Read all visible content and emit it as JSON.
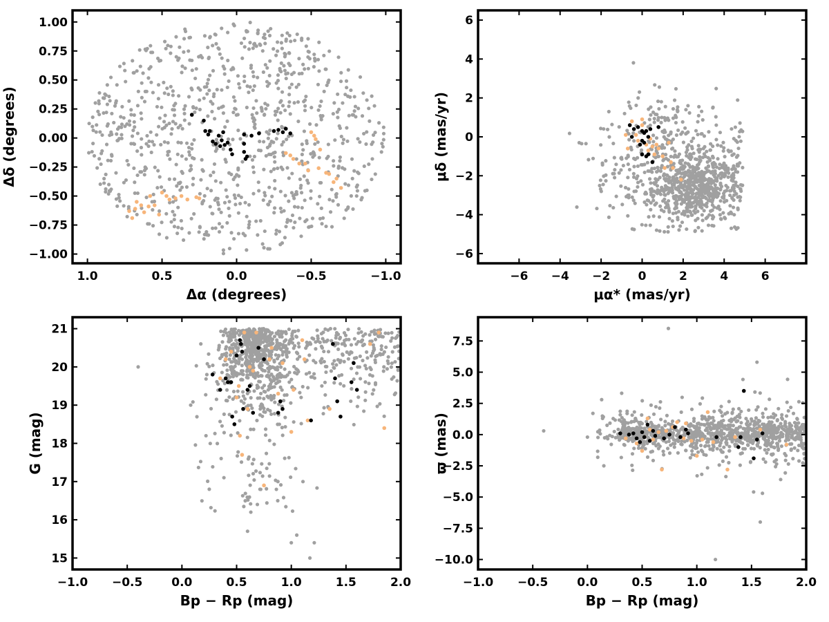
{
  "colors": {
    "field": "#a0a0a0",
    "members": "#000000",
    "highlight": "#f7b57a"
  },
  "chart_data": [
    {
      "type": "scatter",
      "xlabel": "Δα (degrees)",
      "ylabel": "Δδ (degrees)",
      "xlim": [
        1.1,
        -1.1
      ],
      "ylim": [
        -1.08,
        1.1
      ],
      "xticks": [
        1.0,
        0.5,
        0.0,
        -0.5,
        -1.0
      ],
      "xtick_labels": [
        "1.0",
        "0.5",
        "0.0",
        "−0.5",
        "−1.0"
      ],
      "yticks": [
        1.0,
        0.75,
        0.5,
        0.25,
        0.0,
        -0.25,
        -0.5,
        -0.75,
        -1.0
      ],
      "ytick_labels": [
        "1.00",
        "0.75",
        "0.50",
        "0.25",
        "0.00",
        "−0.25",
        "−0.50",
        "−0.75",
        "−1.00"
      ],
      "grid": false,
      "field_distribution": {
        "shape": "disk",
        "center": [
          0.0,
          0.0
        ],
        "radius": 1.0,
        "count": 900
      },
      "series": [
        {
          "color_key": "members",
          "points": [
            [
              0.3,
              0.2
            ],
            [
              0.22,
              0.15
            ],
            [
              0.21,
              0.06
            ],
            [
              0.19,
              0.03
            ],
            [
              0.18,
              0.06
            ],
            [
              0.16,
              -0.03
            ],
            [
              0.14,
              -0.05
            ],
            [
              0.12,
              0.02
            ],
            [
              0.11,
              -0.07
            ],
            [
              0.1,
              -0.02
            ],
            [
              0.09,
              0.05
            ],
            [
              0.08,
              -0.06
            ],
            [
              0.06,
              -0.04
            ],
            [
              0.04,
              -0.1
            ],
            [
              0.03,
              -0.14
            ],
            [
              -0.05,
              0.03
            ],
            [
              -0.05,
              -0.05
            ],
            [
              -0.05,
              -0.12
            ],
            [
              -0.06,
              -0.18
            ],
            [
              -0.07,
              -0.16
            ],
            [
              -0.1,
              0.02
            ],
            [
              -0.15,
              0.04
            ],
            [
              -0.25,
              0.06
            ],
            [
              -0.28,
              0.07
            ],
            [
              -0.31,
              0.05
            ],
            [
              -0.33,
              0.08
            ],
            [
              -0.36,
              0.04
            ]
          ]
        },
        {
          "color_key": "highlight",
          "points": [
            [
              0.72,
              -0.63
            ],
            [
              0.7,
              -0.69
            ],
            [
              0.68,
              -0.61
            ],
            [
              0.67,
              -0.55
            ],
            [
              0.64,
              -0.58
            ],
            [
              0.62,
              -0.64
            ],
            [
              0.59,
              -0.59
            ],
            [
              0.58,
              -0.5
            ],
            [
              0.55,
              -0.58
            ],
            [
              0.52,
              -0.66
            ],
            [
              0.5,
              -0.47
            ],
            [
              0.47,
              -0.5
            ],
            [
              0.45,
              -0.53
            ],
            [
              0.41,
              -0.52
            ],
            [
              0.37,
              -0.5
            ],
            [
              0.33,
              -0.53
            ],
            [
              0.27,
              -0.51
            ],
            [
              0.25,
              -0.52
            ],
            [
              -0.33,
              -0.13
            ],
            [
              -0.36,
              -0.15
            ],
            [
              -0.38,
              -0.18
            ],
            [
              -0.42,
              -0.22
            ],
            [
              -0.46,
              -0.22
            ],
            [
              -0.48,
              -0.28
            ],
            [
              -0.5,
              0.05
            ],
            [
              -0.52,
              0.02
            ],
            [
              -0.53,
              -0.01
            ],
            [
              -0.55,
              -0.26
            ],
            [
              -0.56,
              -0.1
            ],
            [
              -0.6,
              -0.3
            ],
            [
              -0.62,
              -0.31
            ],
            [
              -0.65,
              -0.38
            ],
            [
              -0.67,
              -0.35
            ],
            [
              -0.7,
              -0.43
            ]
          ]
        }
      ]
    },
    {
      "type": "scatter",
      "xlabel": "μα* (mas/yr)",
      "ylabel": "μδ (mas/yr)",
      "xlim": [
        -8.0,
        8.0
      ],
      "ylim": [
        -6.5,
        6.5
      ],
      "xticks": [
        -6,
        -4,
        -2,
        0,
        2,
        4,
        6
      ],
      "xtick_labels": [
        "−6",
        "−4",
        "−2",
        "0",
        "2",
        "4",
        "6"
      ],
      "yticks": [
        6,
        4,
        2,
        0,
        -2,
        -4,
        -6
      ],
      "ytick_labels": [
        "6",
        "4",
        "2",
        "0",
        "−2",
        "−4",
        "−6"
      ],
      "grid": false,
      "field_distribution": {
        "shape": "blob",
        "center": [
          1.5,
          -1.6
        ],
        "spread": [
          1.9,
          1.7
        ],
        "clump_center": [
          2.7,
          -2.7
        ],
        "count": 950
      },
      "series": [
        {
          "color_key": "members",
          "points": [
            [
              -0.6,
              0.6
            ],
            [
              -0.4,
              0.4
            ],
            [
              -0.5,
              0.0
            ],
            [
              -0.2,
              0.5
            ],
            [
              0.0,
              0.3
            ],
            [
              0.1,
              0.2
            ],
            [
              0.2,
              0.3
            ],
            [
              0.3,
              0.0
            ],
            [
              0.0,
              -0.2
            ],
            [
              0.1,
              -0.3
            ],
            [
              -0.1,
              -0.4
            ],
            [
              0.0,
              -0.9
            ],
            [
              0.2,
              -1.0
            ],
            [
              0.3,
              -0.9
            ],
            [
              0.5,
              -1.3
            ],
            [
              0.4,
              0.4
            ],
            [
              0.8,
              0.5
            ]
          ]
        },
        {
          "color_key": "highlight",
          "points": [
            [
              -0.8,
              0.1
            ],
            [
              -0.7,
              -0.6
            ],
            [
              -0.5,
              0.8
            ],
            [
              -0.3,
              0.1
            ],
            [
              -0.2,
              -0.2
            ],
            [
              0.0,
              0.6
            ],
            [
              0.0,
              0.9
            ],
            [
              0.2,
              -0.4
            ],
            [
              0.3,
              -0.7
            ],
            [
              0.4,
              -0.1
            ],
            [
              0.5,
              -0.5
            ],
            [
              0.6,
              -0.9
            ],
            [
              0.7,
              -0.4
            ],
            [
              0.8,
              -0.6
            ],
            [
              1.0,
              -1.0
            ],
            [
              1.1,
              -1.6
            ],
            [
              1.3,
              -0.3
            ],
            [
              1.4,
              -1.3
            ],
            [
              1.9,
              -2.2
            ],
            [
              1.5,
              -1.6
            ]
          ]
        }
      ]
    },
    {
      "type": "scatter",
      "xlabel": "Bp − Rp (mag)",
      "ylabel": "G (mag)",
      "xlim": [
        -1.0,
        2.0
      ],
      "ylim": [
        14.7,
        21.3
      ],
      "xticks": [
        -1.0,
        -0.5,
        0.0,
        0.5,
        1.0,
        1.5,
        2.0
      ],
      "xtick_labels": [
        "−1.0",
        "−0.5",
        "0.0",
        "0.5",
        "1.0",
        "1.5",
        "2.0"
      ],
      "yticks": [
        21,
        20,
        19,
        18,
        17,
        16,
        15
      ],
      "ytick_labels": [
        "21",
        "20",
        "19",
        "18",
        "17",
        "16",
        "15"
      ],
      "grid": false,
      "field_distribution": {
        "shape": "cmd",
        "count": 1000
      },
      "series": [
        {
          "color_key": "members",
          "points": [
            [
              0.28,
              19.8
            ],
            [
              0.35,
              19.4
            ],
            [
              0.4,
              19.7
            ],
            [
              0.42,
              19.6
            ],
            [
              0.45,
              19.6
            ],
            [
              0.46,
              18.7
            ],
            [
              0.48,
              18.5
            ],
            [
              0.5,
              20.3
            ],
            [
              0.53,
              20.7
            ],
            [
              0.54,
              20.6
            ],
            [
              0.55,
              20.4
            ],
            [
              0.56,
              18.9
            ],
            [
              0.6,
              19.4
            ],
            [
              0.62,
              19.5
            ],
            [
              0.65,
              18.8
            ],
            [
              0.7,
              20.5
            ],
            [
              0.75,
              20.2
            ],
            [
              0.88,
              18.8
            ],
            [
              0.9,
              19.1
            ],
            [
              0.92,
              18.9
            ],
            [
              1.18,
              18.6
            ],
            [
              1.38,
              20.6
            ],
            [
              1.4,
              19.7
            ],
            [
              1.42,
              19.1
            ],
            [
              1.45,
              18.7
            ],
            [
              1.55,
              19.6
            ],
            [
              1.57,
              20.1
            ],
            [
              1.6,
              19.4
            ]
          ]
        },
        {
          "color_key": "highlight",
          "points": [
            [
              0.35,
              19.7
            ],
            [
              0.4,
              20.2
            ],
            [
              0.45,
              20.4
            ],
            [
              0.5,
              19.2
            ],
            [
              0.52,
              19.5
            ],
            [
              0.53,
              18.2
            ],
            [
              0.55,
              17.7
            ],
            [
              0.57,
              20.9
            ],
            [
              0.6,
              18.9
            ],
            [
              0.62,
              20.0
            ],
            [
              0.65,
              19.9
            ],
            [
              0.68,
              20.9
            ],
            [
              0.75,
              16.9
            ],
            [
              0.8,
              20.2
            ],
            [
              0.82,
              20.5
            ],
            [
              0.88,
              19.3
            ],
            [
              0.92,
              20.1
            ],
            [
              1.0,
              18.3
            ],
            [
              1.02,
              19.4
            ],
            [
              1.1,
              20.7
            ],
            [
              1.12,
              20.2
            ],
            [
              1.15,
              18.6
            ],
            [
              1.35,
              18.9
            ],
            [
              1.72,
              20.6
            ],
            [
              1.8,
              20.9
            ],
            [
              1.85,
              18.4
            ]
          ]
        }
      ]
    },
    {
      "type": "scatter",
      "xlabel": "Bp − Rp (mag)",
      "ylabel": "ϖ (mas)",
      "xlim": [
        -1.0,
        2.0
      ],
      "ylim": [
        -10.8,
        9.4
      ],
      "xticks": [
        -1.0,
        -0.5,
        0.0,
        0.5,
        1.0,
        1.5,
        2.0
      ],
      "xtick_labels": [
        "−1.0",
        "−0.5",
        "0.0",
        "0.5",
        "1.0",
        "1.5",
        "2.0"
      ],
      "yticks": [
        7.5,
        5.0,
        2.5,
        0.0,
        -2.5,
        -5.0,
        -7.5,
        -10.0
      ],
      "ytick_labels": [
        "7.5",
        "5.0",
        "2.5",
        "0.0",
        "−2.5",
        "−5.0",
        "−7.5",
        "−10.0"
      ],
      "grid": false,
      "field_distribution": {
        "shape": "band",
        "count": 1000
      },
      "series": [
        {
          "color_key": "members",
          "points": [
            [
              0.3,
              0.1
            ],
            [
              0.38,
              0.0
            ],
            [
              0.42,
              0.1
            ],
            [
              0.45,
              -0.3
            ],
            [
              0.48,
              -0.6
            ],
            [
              0.5,
              0.2
            ],
            [
              0.52,
              -0.2
            ],
            [
              0.55,
              0.8
            ],
            [
              0.57,
              -0.5
            ],
            [
              0.6,
              0.3
            ],
            [
              0.62,
              -0.1
            ],
            [
              0.7,
              -0.3
            ],
            [
              0.75,
              0.0
            ],
            [
              0.8,
              0.6
            ],
            [
              0.85,
              -0.2
            ],
            [
              0.9,
              0.4
            ],
            [
              0.92,
              0.1
            ],
            [
              1.18,
              -0.2
            ],
            [
              1.38,
              -1.0
            ],
            [
              1.4,
              -0.2
            ],
            [
              1.43,
              3.5
            ],
            [
              1.52,
              -1.9
            ],
            [
              1.55,
              -0.4
            ],
            [
              1.6,
              0.1
            ]
          ]
        },
        {
          "color_key": "highlight",
          "points": [
            [
              0.35,
              -0.3
            ],
            [
              0.45,
              -0.7
            ],
            [
              0.5,
              -1.3
            ],
            [
              0.52,
              -0.2
            ],
            [
              0.55,
              1.3
            ],
            [
              0.57,
              0.4
            ],
            [
              0.6,
              -0.4
            ],
            [
              0.65,
              0.2
            ],
            [
              0.68,
              -2.8
            ],
            [
              0.72,
              0.3
            ],
            [
              0.78,
              0.6
            ],
            [
              0.82,
              1.0
            ],
            [
              0.88,
              -0.3
            ],
            [
              0.9,
              0.9
            ],
            [
              0.95,
              -0.5
            ],
            [
              1.0,
              -1.7
            ],
            [
              1.05,
              -0.4
            ],
            [
              1.1,
              1.8
            ],
            [
              1.15,
              -0.6
            ],
            [
              1.28,
              -2.8
            ],
            [
              1.35,
              -0.2
            ],
            [
              1.58,
              0.4
            ],
            [
              1.82,
              -0.8
            ]
          ]
        }
      ]
    }
  ]
}
